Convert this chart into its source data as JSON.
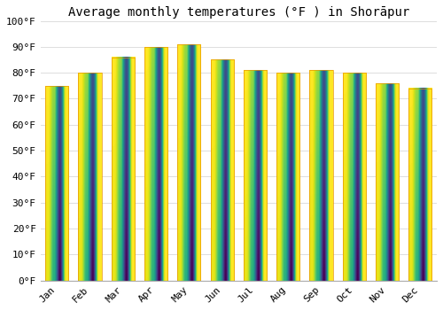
{
  "title": "Average monthly temperatures (°F ) in Shorāpur",
  "months": [
    "Jan",
    "Feb",
    "Mar",
    "Apr",
    "May",
    "Jun",
    "Jul",
    "Aug",
    "Sep",
    "Oct",
    "Nov",
    "Dec"
  ],
  "values": [
    75,
    80,
    86,
    90,
    91,
    85,
    81,
    80,
    81,
    80,
    76,
    74
  ],
  "bar_color_top": "#FDD835",
  "bar_color_bottom": "#F5A000",
  "background_color": "#FFFFFF",
  "grid_color": "#DDDDDD",
  "ylim": [
    0,
    100
  ],
  "ytick_step": 10,
  "title_fontsize": 10,
  "tick_fontsize": 8,
  "font_family": "monospace"
}
